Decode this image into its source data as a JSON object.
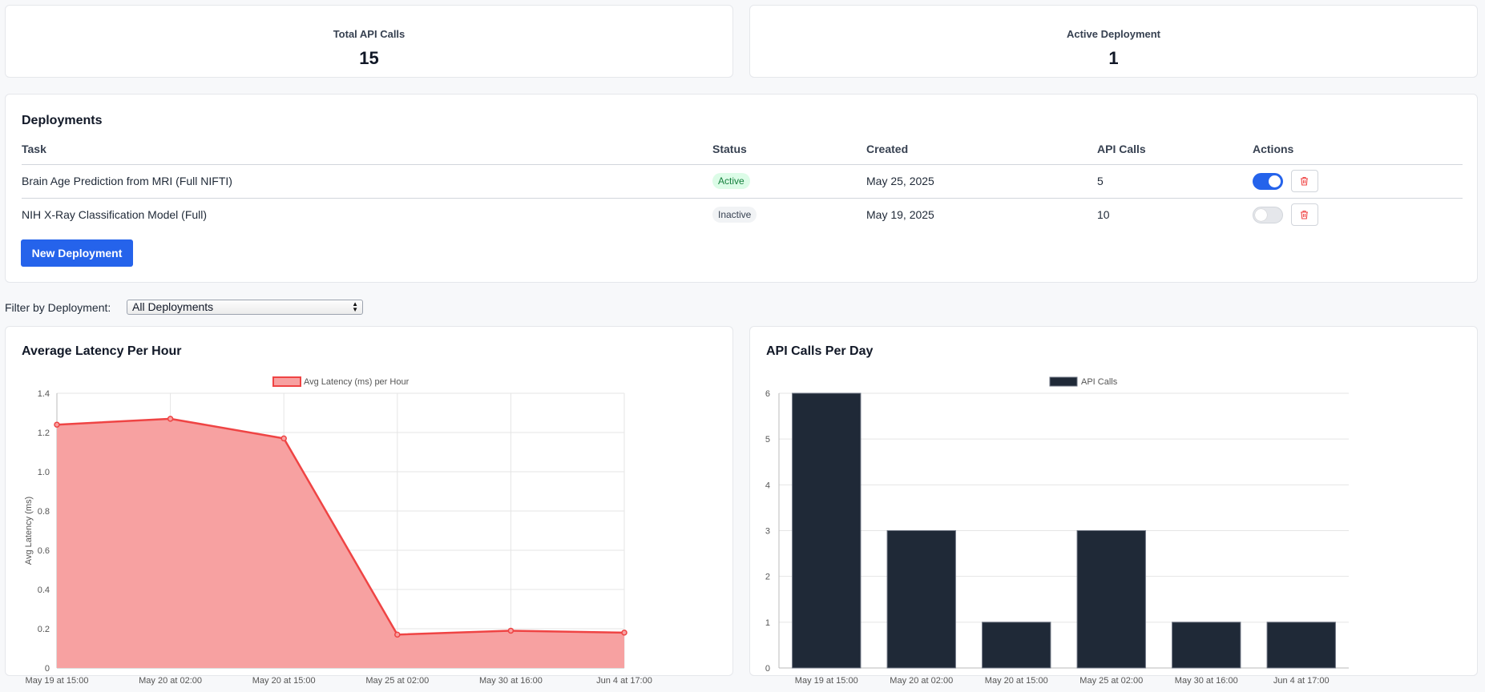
{
  "stats": {
    "total_api_calls_label": "Total API Calls",
    "total_api_calls_value": "15",
    "active_deployment_label": "Active Deployment",
    "active_deployment_value": "1"
  },
  "deployments": {
    "title": "Deployments",
    "columns": [
      "Task",
      "Status",
      "Created",
      "API Calls",
      "Actions"
    ],
    "rows": [
      {
        "task": "Brain Age Prediction from MRI (Full NIFTI)",
        "status": "Active",
        "created": "May 25, 2025",
        "api_calls": "5",
        "enabled": true
      },
      {
        "task": "NIH X-Ray Classification Model (Full)",
        "status": "Inactive",
        "created": "May 19, 2025",
        "api_calls": "10",
        "enabled": false
      }
    ],
    "new_button_label": "New Deployment"
  },
  "filter": {
    "label": "Filter by Deployment:",
    "selected": "All Deployments"
  },
  "icons": {
    "delete": "trash-icon",
    "select_arrows": "updown-arrows-icon"
  },
  "colors": {
    "primary": "#2563eb",
    "latency_line": "#ef4444",
    "latency_fill": "#f7a1a1",
    "bar_fill": "#1f2937",
    "active_badge_bg": "#dcfce7",
    "active_badge_text": "#15803d",
    "delete_icon": "#ef4444"
  },
  "chart_data": [
    {
      "type": "area",
      "title": "Average Latency Per Hour",
      "legend": "Avg Latency (ms) per Hour",
      "legend_position": "top-center",
      "ylabel": "Avg Latency (ms)",
      "xlabel": "",
      "categories": [
        "May 19 at 15:00",
        "May 20 at 02:00",
        "May 20 at 15:00",
        "May 25 at 02:00",
        "May 30 at 16:00",
        "Jun 4 at 17:00"
      ],
      "values": [
        1.24,
        1.27,
        1.17,
        0.17,
        0.19,
        0.18
      ],
      "ylim": [
        0,
        1.4
      ],
      "yticks": [
        "0",
        "0.2",
        "0.4",
        "0.6",
        "0.8",
        "1.0",
        "1.2",
        "1.4"
      ],
      "grid": true
    },
    {
      "type": "bar",
      "title": "API Calls Per Day",
      "legend": "API Calls",
      "legend_position": "top-center",
      "xlabel": "",
      "ylabel": "",
      "categories": [
        "May 19 at 15:00",
        "May 20 at 02:00",
        "May 20 at 15:00",
        "May 25 at 02:00",
        "May 30 at 16:00",
        "Jun 4 at 17:00"
      ],
      "values": [
        6,
        3,
        1,
        3,
        1,
        1
      ],
      "ylim": [
        0,
        6
      ],
      "yticks": [
        "0",
        "1",
        "2",
        "3",
        "4",
        "5",
        "6"
      ],
      "grid": true
    }
  ]
}
